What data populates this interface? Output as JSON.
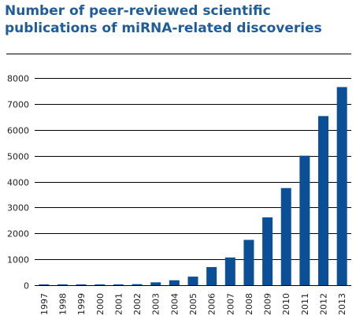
{
  "chart_data": {
    "type": "bar",
    "title": "Number of peer-reviewed scientific publications of miRNA-related discoveries",
    "xlabel": "",
    "ylabel": "",
    "categories": [
      "1997",
      "1998",
      "1999",
      "2000",
      "2001",
      "2002",
      "2003",
      "2004",
      "2005",
      "2006",
      "2007",
      "2008",
      "2009",
      "2010",
      "2011",
      "2012",
      "2013"
    ],
    "values": [
      5,
      5,
      5,
      5,
      5,
      40,
      110,
      190,
      330,
      700,
      1070,
      1750,
      2620,
      3750,
      5000,
      6530,
      7650
    ],
    "ylim": [
      0,
      8000
    ],
    "yticks": [
      "0",
      "1000",
      "2000",
      "3000",
      "4000",
      "5000",
      "6000",
      "7000",
      "8000"
    ],
    "grid": "horizontal",
    "legend": "none",
    "bar_color": "#0b4f96"
  }
}
